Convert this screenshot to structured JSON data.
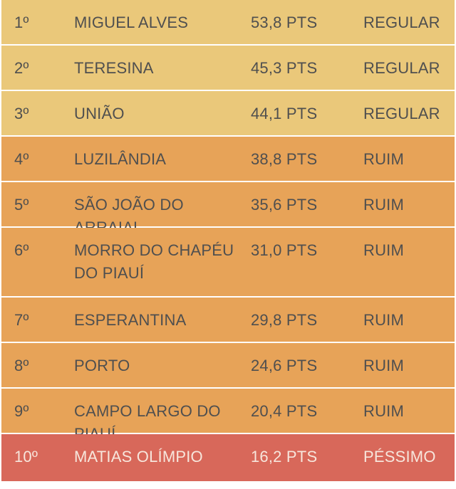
{
  "colors": {
    "regular": "#EAC87A",
    "ruim": "#E7A358",
    "pessimo": "#D8685A",
    "text_dark": "#4f4f4f",
    "text_light": "#f7e6dc"
  },
  "rows": [
    {
      "position": "1º",
      "name": "MIGUEL ALVES",
      "score": "53,8 PTS",
      "status": "REGULAR"
    },
    {
      "position": "2º",
      "name": "TERESINA",
      "score": "45,3 PTS",
      "status": "REGULAR"
    },
    {
      "position": "3º",
      "name": "UNIÃO",
      "score": "44,1 PTS",
      "status": "REGULAR"
    },
    {
      "position": "4º",
      "name": "LUZILÂNDIA",
      "score": "38,8 PTS",
      "status": "RUIM"
    },
    {
      "position": "5º",
      "name": "SÃO JOÃO DO ARRAIAL",
      "score": "35,6 PTS",
      "status": "RUIM"
    },
    {
      "position": "6º",
      "name": "MORRO DO CHAPÉU DO PIAUÍ",
      "score": "31,0 PTS",
      "status": "RUIM"
    },
    {
      "position": "7º",
      "name": "ESPERANTINA",
      "score": "29,8 PTS",
      "status": "RUIM"
    },
    {
      "position": "8º",
      "name": "PORTO",
      "score": "24,6 PTS",
      "status": "RUIM"
    },
    {
      "position": "9º",
      "name": "CAMPO LARGO DO PIAUÍ",
      "score": "20,4 PTS",
      "status": "RUIM"
    },
    {
      "position": "10º",
      "name": "MATIAS OLÍMPIO",
      "score": "16,2 PTS",
      "status": "PÉSSIMO"
    }
  ]
}
